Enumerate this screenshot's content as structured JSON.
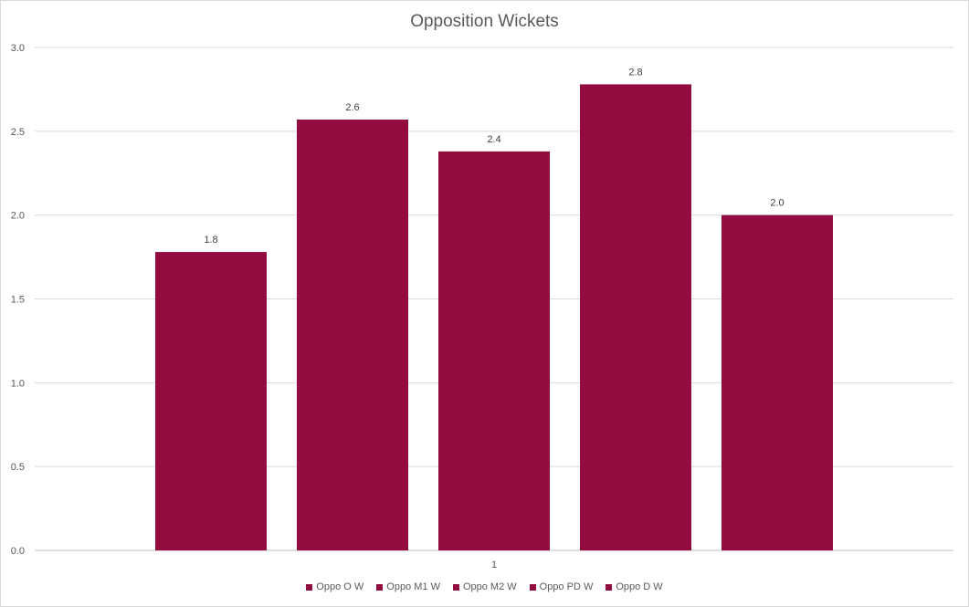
{
  "chart_data": {
    "type": "bar",
    "title": "Opposition Wickets",
    "categories": [
      "1"
    ],
    "series": [
      {
        "name": "Oppo O W",
        "values": [
          1.78
        ],
        "label": "1.8"
      },
      {
        "name": "Oppo M1 W",
        "values": [
          2.57
        ],
        "label": "2.6"
      },
      {
        "name": "Oppo M2 W",
        "values": [
          2.38
        ],
        "label": "2.4"
      },
      {
        "name": "Oppo PD W",
        "values": [
          2.78
        ],
        "label": "2.8"
      },
      {
        "name": "Oppo D W",
        "values": [
          2.0
        ],
        "label": "2.0"
      }
    ],
    "xlabel": "",
    "ylabel": "",
    "ylim": [
      0,
      3
    ],
    "yticks": [
      "0.0",
      "0.5",
      "1.0",
      "1.5",
      "2.0",
      "2.5",
      "3.0"
    ],
    "grid": true,
    "legend": "bottom",
    "bar_color": "#920c40"
  }
}
